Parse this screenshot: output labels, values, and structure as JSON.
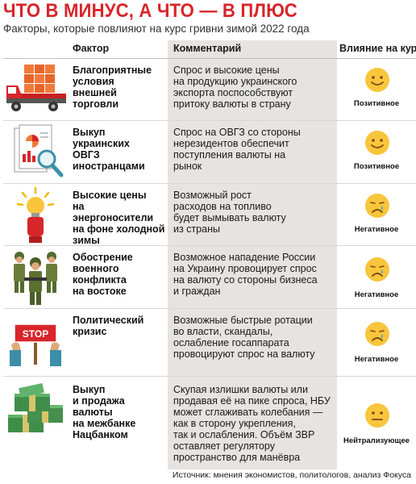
{
  "title": "ЧТО В МИНУС, А ЧТО — В ПЛЮС",
  "subtitle": "Факторы, которые повлияют на курс гривни зимой 2022 года",
  "headers": {
    "factor": "Фактор",
    "comment": "Комментарий",
    "impact": "Влияние на курс"
  },
  "rows": [
    {
      "icon": "truck-with-cargo-icon",
      "factor": [
        "Благоприятные",
        "условия",
        "внешней",
        "торговли"
      ],
      "comment": [
        "Спрос и высокие цены",
        "на продукцию украинского",
        "экспорта поспособствуют",
        "притоку валюты в страну"
      ],
      "mood": "happy",
      "impact": "Позитивное"
    },
    {
      "icon": "documents-magnifier-icon",
      "factor": [
        "Выкуп",
        "украинских",
        "ОВГЗ",
        "иностранцами"
      ],
      "comment": [
        "Спрос на ОВГЗ со стороны",
        "нерезидентов обеспечит",
        "поступления валюты на",
        "рынок"
      ],
      "mood": "happy",
      "impact": "Позитивное"
    },
    {
      "icon": "lightbulb-hand-icon",
      "factor": [
        "Высокие цены",
        "на энергоносители",
        "на фоне холодной",
        "зимы"
      ],
      "comment": [
        "Возможный рост",
        "расходов на топливо",
        "будет вымывать валюту",
        "из страны"
      ],
      "mood": "sad",
      "impact": "Негативное"
    },
    {
      "icon": "soldiers-icon",
      "factor": [
        "Обострение",
        "военного",
        "конфликта",
        "на востоке"
      ],
      "comment": [
        "Возможное нападение России",
        "на Украину провоцирует спрос",
        "на валюту со стороны бизнеса",
        "и граждан"
      ],
      "mood": "sad",
      "impact": "Негативное"
    },
    {
      "icon": "stop-sign-icon",
      "factor": [
        "Политический",
        "кризис"
      ],
      "comment": [
        "Возможные быстрые ротации",
        "во власти, скандалы,",
        "ослабление госаппарата",
        "провоцируют спрос на валюту"
      ],
      "mood": "sad",
      "impact": "Негативное"
    },
    {
      "icon": "money-stacks-icon",
      "factor": [
        "Выкуп",
        "и продажа",
        "валюты",
        "на межбанке",
        "Нацбанком"
      ],
      "comment": [
        "Скупая излишки валюты или",
        "продавая её на пике спроса, НБУ",
        "может сглаживать колебания —",
        "как в сторону укрепления,",
        "так и ослабления. Объём ЗВР",
        "оставляет регулятору",
        "пространство для манёвра"
      ],
      "mood": "neutral",
      "impact": "Нейтрализующее"
    }
  ],
  "source": "Источник: мнения экономистов, политологов, анализ Фокуса",
  "colors": {
    "title_red": "#d7252a",
    "comment_bg": "#e6e3e1",
    "smiley": "#f8c53c"
  }
}
